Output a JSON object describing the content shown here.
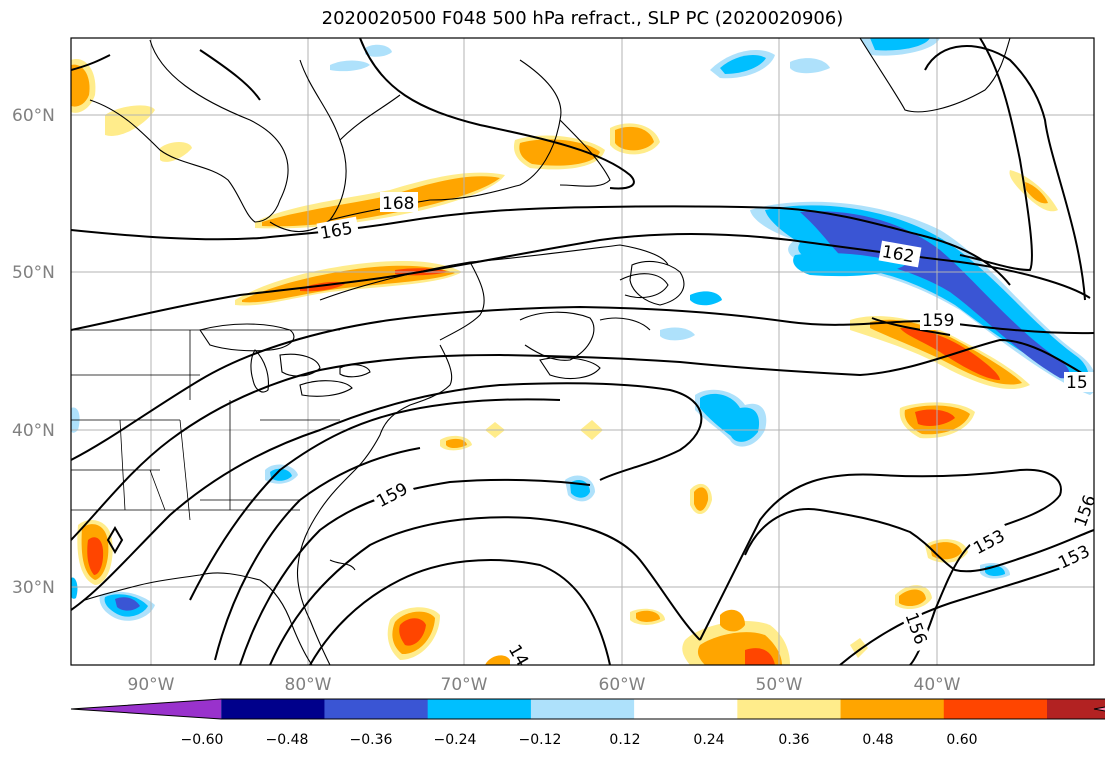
{
  "title": "2020020500 F048 500 hPa refract., SLP PC (2020020906)",
  "map": {
    "lat_labels": [
      "60°N",
      "50°N",
      "40°N",
      "30°N"
    ],
    "lon_labels": [
      "90°W",
      "80°W",
      "70°W",
      "60°W",
      "50°W",
      "40°W"
    ],
    "contour_labels": [
      "168",
      "165",
      "162",
      "159",
      "15",
      "159",
      "153",
      "153",
      "156",
      "156",
      "14"
    ],
    "fill_colors": {
      "neg_strong": "#3a55d4",
      "neg_mid": "#00bfff",
      "neg_weak": "#aee1fb",
      "pos_weak": "#ffec8b",
      "pos_mid": "#ffa500",
      "pos_strong": "#ff4500",
      "pos_max": "#b22222"
    }
  },
  "colorbar": {
    "labels": [
      "−0.60",
      "−0.48",
      "−0.36",
      "−0.24",
      "−0.12",
      "0.12",
      "0.24",
      "0.36",
      "0.48",
      "0.60"
    ],
    "colors": [
      "#9932cc",
      "#00008b",
      "#3a55d4",
      "#00bfff",
      "#aee1fb",
      "#ffffff",
      "#ffec8b",
      "#ffa500",
      "#ff4500",
      "#b22222",
      "#ff88b0"
    ]
  }
}
